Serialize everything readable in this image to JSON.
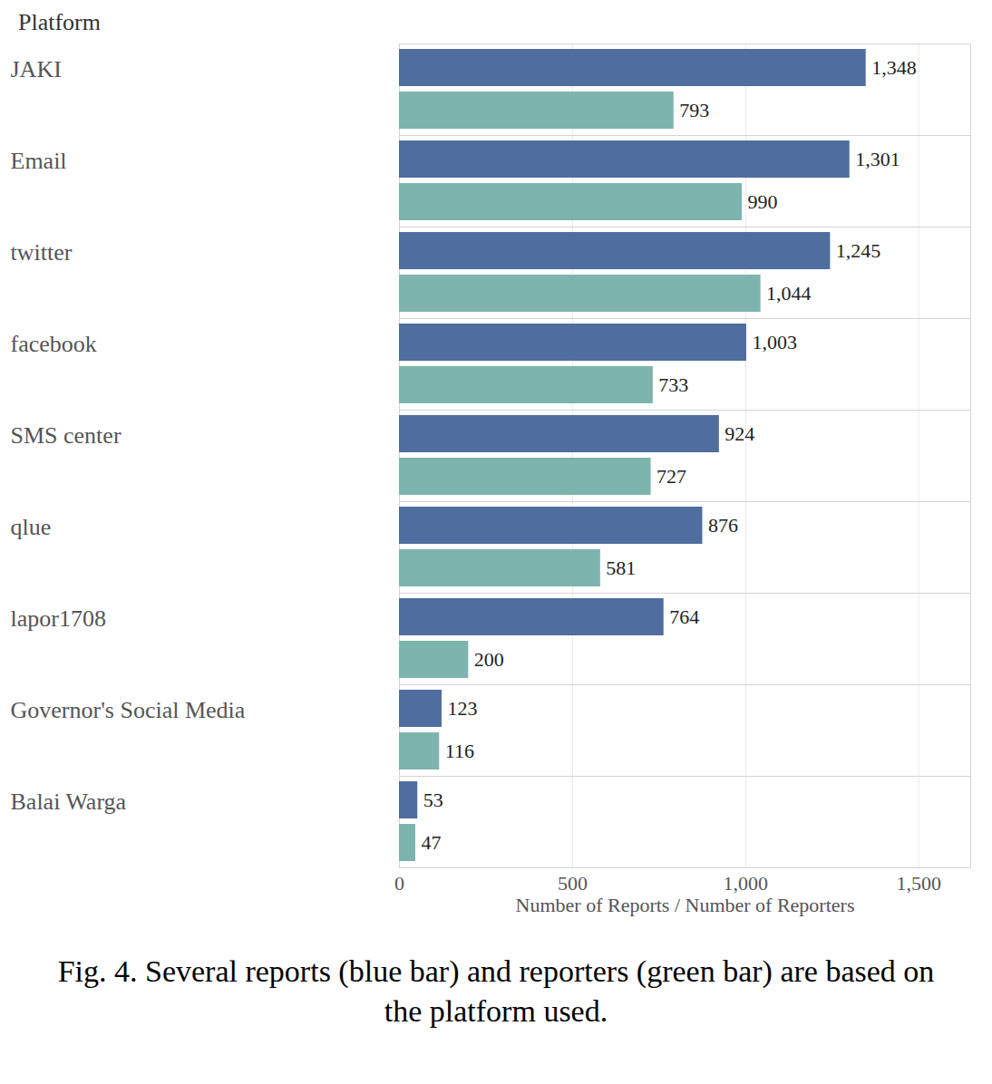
{
  "chart_data": {
    "type": "bar",
    "orientation": "horizontal",
    "ylabel": "Platform",
    "xlabel": "Number of Reports / Number of Reporters",
    "caption": "Fig. 4. Several reports (blue bar) and reporters (green bar) are based on the platform used.",
    "categories": [
      "JAKI",
      "Email",
      "twitter",
      "facebook",
      "SMS center",
      "qlue",
      "lapor1708",
      "Governor's Social Media",
      "Balai Warga"
    ],
    "series": [
      {
        "name": "Number of Reports",
        "color": "#4f6d9e",
        "values": [
          1348,
          1301,
          1245,
          1003,
          924,
          876,
          764,
          123,
          53
        ],
        "value_labels": [
          "1,348",
          "1,301",
          "1,245",
          "1,003",
          "924",
          "876",
          "764",
          "123",
          "53"
        ]
      },
      {
        "name": "Number of Reporters",
        "color": "#7db5ae",
        "values": [
          793,
          990,
          1044,
          733,
          727,
          581,
          200,
          116,
          47
        ],
        "value_labels": [
          "793",
          "990",
          "1,044",
          "733",
          "727",
          "581",
          "200",
          "116",
          "47"
        ]
      }
    ],
    "xlim": [
      0,
      1650
    ],
    "xticks": [
      0,
      500,
      1000,
      1500
    ],
    "grid": true,
    "data_labels": true
  }
}
